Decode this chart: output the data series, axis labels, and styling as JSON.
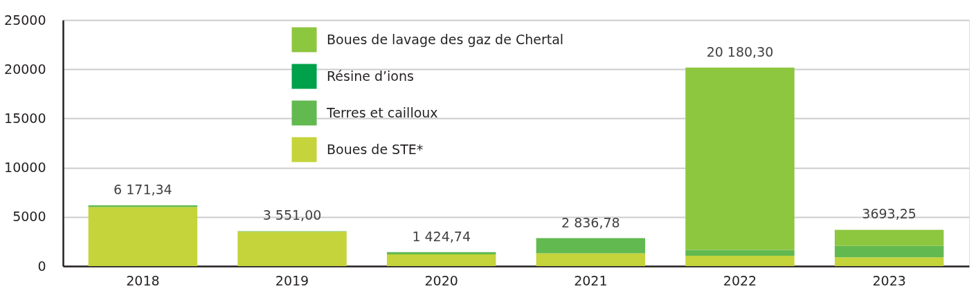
{
  "chart_data": {
    "type": "bar",
    "stacked": true,
    "categories": [
      "2018",
      "2019",
      "2020",
      "2021",
      "2022",
      "2023"
    ],
    "series": [
      {
        "name": "Boues de STE*",
        "color": "#c4d43a",
        "values": [
          6000,
          3500,
          1200,
          1300,
          1050,
          900
        ]
      },
      {
        "name": "Terres et cailloux",
        "color": "#62b94f",
        "values": [
          171.34,
          51,
          224.74,
          1536.78,
          600,
          1160
        ]
      },
      {
        "name": "Résine d’ions",
        "color": "#00a14b",
        "values": [
          0,
          0,
          0,
          0,
          0,
          0
        ]
      },
      {
        "name": "Boues de lavage des gaz de Chertal",
        "color": "#8dc63f",
        "values": [
          0,
          0,
          0,
          0,
          18530.3,
          1633.25
        ]
      }
    ],
    "totals": [
      "6 171,34",
      "3 551,00",
      "1 424,74",
      "2 836,78",
      "20 180,30",
      "3693,25"
    ],
    "ylim": [
      0,
      25000
    ],
    "yticks": [
      0,
      5000,
      10000,
      15000,
      20000,
      25000
    ],
    "grid": "y",
    "legend": "top"
  }
}
